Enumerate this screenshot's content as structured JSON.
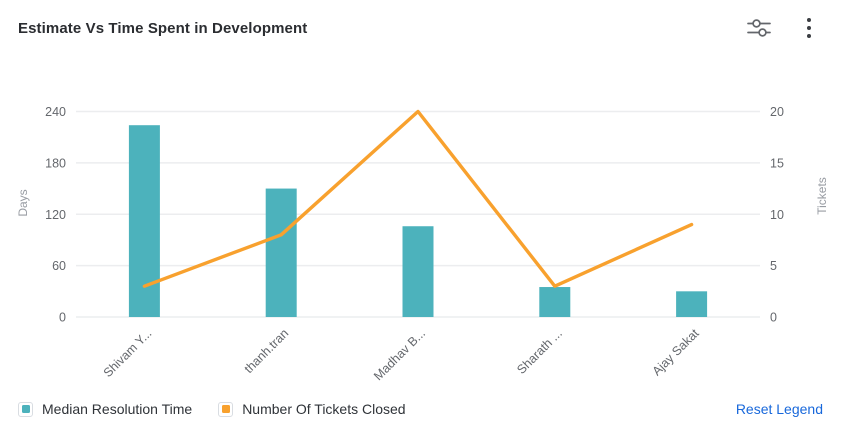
{
  "header": {
    "title": "Estimate Vs Time Spent in Development",
    "icons": [
      {
        "name": "filter-sliders-icon"
      },
      {
        "name": "more-menu-icon"
      }
    ]
  },
  "chart_data": {
    "type": "combo-bar-line",
    "categories": [
      "Shivam Y...",
      "thanh.tran",
      "Madhav B...",
      "Sharath ...",
      "Ajay Sakat"
    ],
    "series": [
      {
        "name": "Median Resolution Time",
        "type": "bar",
        "axis": "left",
        "color": "#4CB2BC",
        "values": [
          224,
          150,
          106,
          35,
          30
        ]
      },
      {
        "name": "Number Of Tickets Closed",
        "type": "line",
        "axis": "right",
        "color": "#F8A12E",
        "values": [
          3,
          8,
          20,
          3,
          9
        ]
      }
    ],
    "left_axis": {
      "label": "Days",
      "ticks": [
        0,
        60,
        120,
        180,
        240
      ],
      "min": 0,
      "max": 240
    },
    "right_axis": {
      "label": "Tickets",
      "ticks": [
        0,
        5,
        10,
        15,
        20
      ],
      "min": 0,
      "max": 20
    },
    "grid": true,
    "legend_position": "bottom",
    "x_label_rotation": -45
  },
  "legend": {
    "items": [
      {
        "label": "Median Resolution Time",
        "color": "#4CB2BC"
      },
      {
        "label": "Number Of Tickets Closed",
        "color": "#F8A12E"
      }
    ],
    "reset_label": "Reset Legend",
    "reset_color": "#1868DB"
  },
  "colors": {
    "grid_line": "#ECEDEF",
    "tick_text": "#64676C",
    "axis_name_text": "#989CA3",
    "title_text": "#2B2D31",
    "icon": "#63666B"
  }
}
